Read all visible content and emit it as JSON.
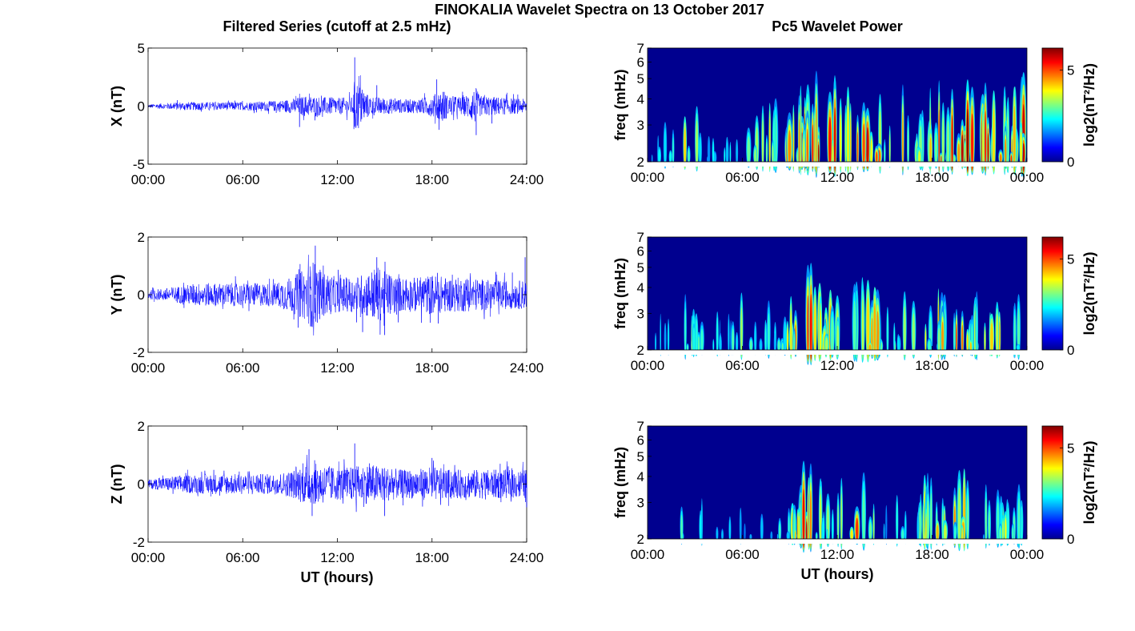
{
  "figure": {
    "suptitle": "FINOKALIA Wavelet Spectra on 13 October 2017",
    "left_title": "Filtered Series (cutoff at 2.5 mHz)",
    "right_title": "Pc5 Wavelet Power",
    "xlabel": "UT (hours)"
  },
  "chart_data": [
    {
      "type": "line",
      "id": "x-series",
      "ylabel": "X (nT)",
      "ylim": [
        -5,
        5
      ],
      "yticks": [
        "5",
        "0",
        "-5"
      ],
      "ytick_values": [
        5,
        0,
        -5
      ],
      "xticks": [
        "00:00",
        "06:00",
        "12:00",
        "18:00",
        "24:00"
      ],
      "xtick_values": [
        0,
        6,
        12,
        18,
        24
      ],
      "xlim": [
        0,
        24
      ],
      "line_color": "#0000ff",
      "envelope": {
        "x": [
          0,
          2,
          4,
          6,
          8,
          9,
          10,
          11,
          12,
          13,
          13.1,
          14,
          15,
          16,
          17,
          18,
          18.7,
          19,
          20,
          20.8,
          21,
          22,
          23,
          24
        ],
        "amplitude": [
          0.15,
          0.35,
          0.35,
          0.35,
          0.45,
          0.6,
          0.9,
          0.8,
          0.7,
          0.8,
          2.5,
          0.9,
          0.7,
          0.6,
          0.6,
          0.9,
          1.5,
          0.9,
          0.8,
          1.6,
          0.9,
          0.8,
          0.7,
          0.6
        ]
      },
      "spikes": [
        {
          "x": 13.1,
          "y": 4.2
        },
        {
          "x": 13.1,
          "y": -1.8
        },
        {
          "x": 9.6,
          "y": -1.8
        },
        {
          "x": 14.5,
          "y": 1.8
        },
        {
          "x": 18.3,
          "y": 2.3
        },
        {
          "x": 20.8,
          "y": -2.5
        },
        {
          "x": 21.8,
          "y": -1.5
        }
      ]
    },
    {
      "type": "line",
      "id": "y-series",
      "ylabel": "Y (nT)",
      "ylim": [
        -2,
        2
      ],
      "yticks": [
        "2",
        "0",
        "-2"
      ],
      "ytick_values": [
        2,
        0,
        -2
      ],
      "xticks": [
        "00:00",
        "06:00",
        "12:00",
        "18:00",
        "24:00"
      ],
      "xtick_values": [
        0,
        6,
        12,
        18,
        24
      ],
      "xlim": [
        0,
        24
      ],
      "line_color": "#0000ff",
      "envelope": {
        "x": [
          0,
          2,
          3,
          4,
          6,
          8,
          9,
          10,
          10.5,
          11,
          12,
          13,
          14,
          14.5,
          15,
          16,
          17,
          18,
          19,
          20,
          22,
          24
        ],
        "amplitude": [
          0.15,
          0.3,
          0.4,
          0.4,
          0.4,
          0.4,
          0.6,
          0.9,
          1.2,
          0.8,
          0.6,
          0.6,
          0.8,
          1.0,
          0.8,
          0.6,
          0.6,
          0.7,
          0.6,
          0.6,
          0.5,
          0.5
        ]
      },
      "spikes": [
        {
          "x": 10.6,
          "y": 1.7
        },
        {
          "x": 10.3,
          "y": -1.1
        },
        {
          "x": 14.5,
          "y": 1.3
        },
        {
          "x": 13.6,
          "y": -1.3
        },
        {
          "x": 15.0,
          "y": -1.4
        },
        {
          "x": 18.4,
          "y": -1.0
        },
        {
          "x": 23.9,
          "y": 1.3
        }
      ]
    },
    {
      "type": "line",
      "id": "z-series",
      "ylabel": "Z (nT)",
      "ylim": [
        -2,
        2
      ],
      "yticks": [
        "2",
        "0",
        "-2"
      ],
      "ytick_values": [
        2,
        0,
        -2
      ],
      "xticks": [
        "00:00",
        "06:00",
        "12:00",
        "18:00",
        "24:00"
      ],
      "xtick_values": [
        0,
        6,
        12,
        18,
        24
      ],
      "xlim": [
        0,
        24
      ],
      "line_color": "#0000ff",
      "envelope": {
        "x": [
          0,
          2,
          4,
          6,
          8,
          9,
          10,
          11,
          12,
          13,
          14,
          15,
          16,
          17,
          18,
          19,
          20,
          22,
          24
        ],
        "amplitude": [
          0.15,
          0.3,
          0.35,
          0.35,
          0.35,
          0.45,
          0.7,
          0.7,
          0.55,
          0.6,
          0.7,
          0.6,
          0.5,
          0.5,
          0.6,
          0.5,
          0.5,
          0.5,
          0.5
        ]
      },
      "spikes": [
        {
          "x": 10.2,
          "y": 1.2
        },
        {
          "x": 13.1,
          "y": 1.4
        },
        {
          "x": 10.4,
          "y": -1.1
        },
        {
          "x": 15.0,
          "y": -1.1
        },
        {
          "x": 18.0,
          "y": 0.9
        },
        {
          "x": 24.0,
          "y": -0.8
        }
      ]
    },
    {
      "type": "heatmap",
      "id": "x-wavelet",
      "ylabel": "freq (mHz)",
      "yscale": "log",
      "ylim": [
        2,
        7
      ],
      "yticks": [
        "7",
        "6",
        "5",
        "4",
        "3",
        "2"
      ],
      "ytick_values": [
        7,
        6,
        5,
        4,
        3,
        2
      ],
      "xticks": [
        "00:00",
        "06:00",
        "12:00",
        "18:00",
        "00:00"
      ],
      "xtick_values": [
        0,
        6,
        12,
        18,
        24
      ],
      "xlim": [
        0,
        24
      ],
      "colorbar": {
        "label": "log2(nT²/Hz)",
        "ticks": [
          "5",
          "0"
        ],
        "tick_values": [
          5,
          0
        ],
        "range": [
          0,
          6.2
        ],
        "colormap": "jet"
      },
      "activity": {
        "x": [
          0,
          2,
          2.5,
          3,
          4,
          5,
          6,
          7,
          8,
          9,
          10,
          11,
          12,
          13,
          14,
          15,
          16,
          17,
          18,
          19,
          20,
          21,
          22,
          23,
          24
        ],
        "level": [
          0.35,
          0.5,
          0.75,
          0.55,
          0.45,
          0.5,
          0.55,
          0.55,
          0.7,
          0.85,
          1.0,
          0.95,
          0.9,
          1.0,
          1.0,
          0.8,
          0.75,
          0.75,
          0.85,
          0.9,
          1.0,
          0.95,
          0.9,
          0.9,
          0.9
        ]
      }
    },
    {
      "type": "heatmap",
      "id": "y-wavelet",
      "ylabel": "freq (mHz)",
      "yscale": "log",
      "ylim": [
        2,
        7
      ],
      "yticks": [
        "7",
        "6",
        "5",
        "4",
        "3",
        "2"
      ],
      "ytick_values": [
        7,
        6,
        5,
        4,
        3,
        2
      ],
      "xticks": [
        "00:00",
        "06:00",
        "12:00",
        "18:00",
        "00:00"
      ],
      "xtick_values": [
        0,
        6,
        12,
        18,
        24
      ],
      "xlim": [
        0,
        24
      ],
      "colorbar": {
        "label": "log2(nT²/Hz)",
        "ticks": [
          "5",
          "0"
        ],
        "tick_values": [
          5,
          0
        ],
        "range": [
          0,
          6.2
        ],
        "colormap": "jet"
      },
      "activity": {
        "x": [
          0,
          2,
          2.5,
          3,
          4,
          5,
          6,
          7,
          8,
          9,
          10,
          11,
          12,
          13,
          14,
          15,
          16,
          17,
          18,
          19,
          20,
          21,
          22,
          23,
          24
        ],
        "level": [
          0.3,
          0.4,
          0.75,
          0.5,
          0.4,
          0.35,
          0.6,
          0.4,
          0.45,
          0.7,
          1.0,
          0.75,
          0.65,
          0.75,
          0.85,
          0.7,
          0.6,
          0.7,
          0.8,
          0.75,
          0.85,
          0.6,
          0.7,
          0.6,
          0.55
        ]
      }
    },
    {
      "type": "heatmap",
      "id": "z-wavelet",
      "ylabel": "freq (mHz)",
      "yscale": "log",
      "ylim": [
        2,
        7
      ],
      "yticks": [
        "7",
        "6",
        "5",
        "4",
        "3",
        "2"
      ],
      "ytick_values": [
        7,
        6,
        5,
        4,
        3,
        2
      ],
      "xticks": [
        "00:00",
        "06:00",
        "12:00",
        "18:00",
        "00:00"
      ],
      "xtick_values": [
        0,
        6,
        12,
        18,
        24
      ],
      "xlim": [
        0,
        24
      ],
      "colorbar": {
        "label": "log2(nT²/Hz)",
        "ticks": [
          "5",
          "0"
        ],
        "tick_values": [
          5,
          0
        ],
        "range": [
          0,
          6.2
        ],
        "colormap": "jet"
      },
      "activity": {
        "x": [
          0,
          2,
          2.5,
          3,
          4,
          5,
          6,
          7,
          8,
          9,
          10,
          11,
          12,
          13,
          14,
          15,
          16,
          17,
          18,
          19,
          20,
          21,
          22,
          23,
          24
        ],
        "level": [
          0.25,
          0.35,
          0.7,
          0.45,
          0.35,
          0.3,
          0.45,
          0.3,
          0.35,
          0.55,
          0.95,
          0.6,
          0.55,
          0.85,
          0.7,
          0.45,
          0.45,
          0.55,
          0.75,
          0.65,
          0.8,
          0.5,
          0.55,
          0.6,
          0.55
        ]
      }
    }
  ]
}
